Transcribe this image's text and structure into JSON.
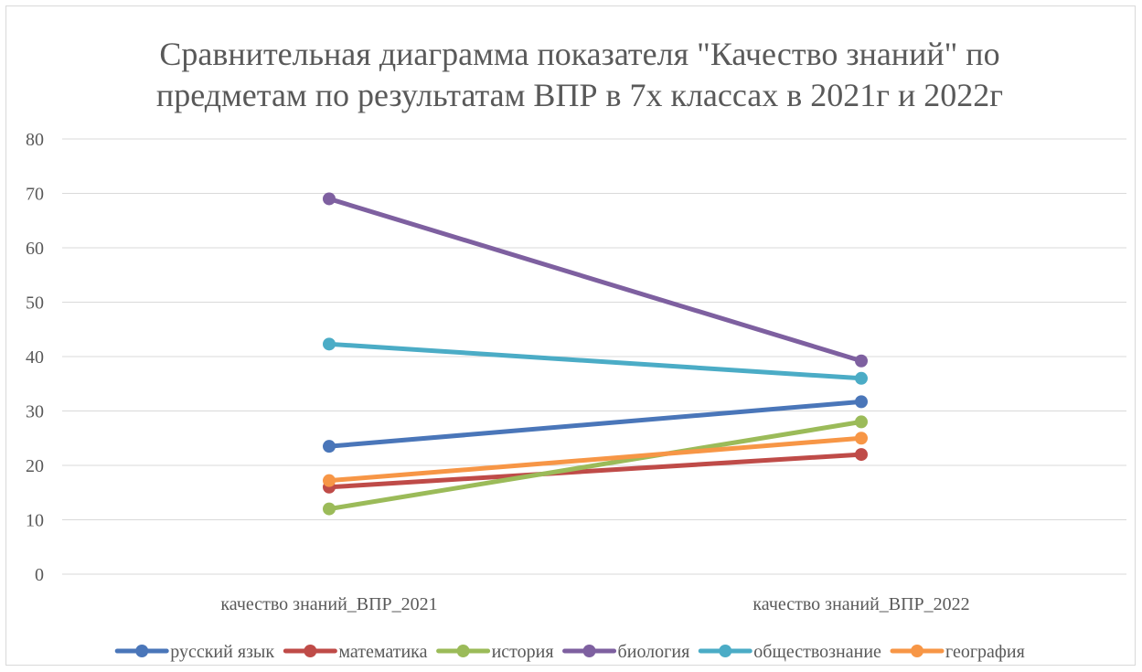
{
  "chart_data": {
    "type": "line",
    "title_lines": [
      "Сравнительная диаграмма показателя \"Качество знаний\" по",
      "предметам по результатам ВПР в 7х классах в 2021г и 2022г"
    ],
    "categories": [
      "качество знаний_ВПР_2021",
      "качество знаний_ВПР_2022"
    ],
    "y_ticks": [
      "0",
      "10",
      "20",
      "30",
      "40",
      "50",
      "60",
      "70",
      "80"
    ],
    "ylim": [
      0,
      80
    ],
    "grid": true,
    "legend_position": "bottom",
    "series": [
      {
        "name": "русский язык",
        "values": [
          23.5,
          31.7
        ],
        "color": "#4a76b9"
      },
      {
        "name": "математика",
        "values": [
          16,
          22
        ],
        "color": "#bf4b48"
      },
      {
        "name": "история",
        "values": [
          12,
          28
        ],
        "color": "#9bbb59"
      },
      {
        "name": "биология",
        "values": [
          69,
          39.2
        ],
        "color": "#7e60a0"
      },
      {
        "name": "обществознание",
        "values": [
          42.3,
          36
        ],
        "color": "#4bacc6"
      },
      {
        "name": "география",
        "values": [
          17.2,
          25
        ],
        "color": "#f79646"
      }
    ]
  }
}
